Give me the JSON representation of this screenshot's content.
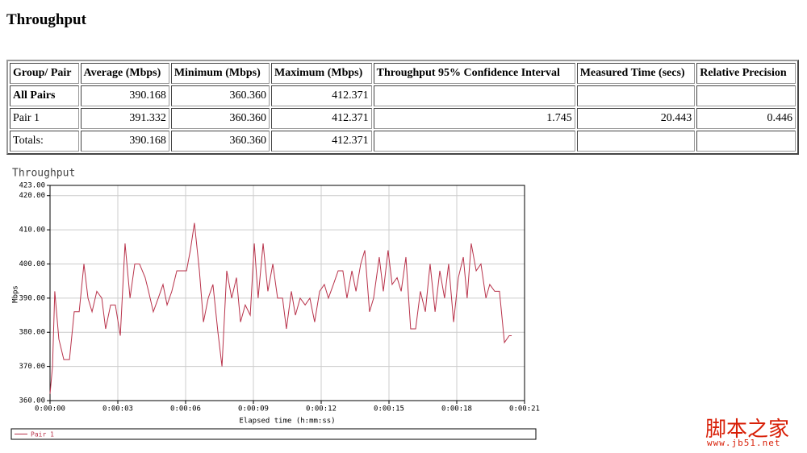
{
  "header": {
    "title": "Throughput"
  },
  "table": {
    "headers": [
      "Group/ Pair",
      "Average (Mbps)",
      "Minimum (Mbps)",
      "Maximum (Mbps)",
      "Throughput 95% Confidence Interval",
      "Measured Time (secs)",
      "Relative Precision"
    ],
    "rows": [
      {
        "group": "All Pairs",
        "average": "390.168",
        "minimum": "360.360",
        "maximum": "412.371"
      },
      {
        "group": "Pair 1",
        "average": "391.332",
        "minimum": "360.360",
        "maximum": "412.371",
        "ci": "1.745",
        "time": "20.443",
        "precision": "0.446"
      },
      {
        "group": "Totals:",
        "average": "390.168",
        "minimum": "360.360",
        "maximum": "412.371"
      }
    ]
  },
  "chart_data": {
    "type": "line",
    "title": "Throughput",
    "x_label": "Elapsed time (h:mm:ss)",
    "y_label": "Mbps",
    "x": [
      0,
      0.11,
      0.21,
      0.39,
      0.61,
      0.86,
      1.07,
      1.29,
      1.5,
      1.68,
      1.86,
      2.07,
      2.29,
      2.46,
      2.68,
      2.89,
      3.11,
      3.32,
      3.54,
      3.75,
      3.96,
      4.21,
      4.36,
      4.57,
      4.79,
      5,
      5.18,
      5.39,
      5.61,
      5.82,
      6.04,
      6.21,
      6.39,
      6.61,
      6.79,
      7,
      7.21,
      7.43,
      7.61,
      7.82,
      8.04,
      8.25,
      8.43,
      8.64,
      8.86,
      9.04,
      9.21,
      9.43,
      9.64,
      9.86,
      10.07,
      10.29,
      10.46,
      10.68,
      10.86,
      11.07,
      11.29,
      11.5,
      11.71,
      11.93,
      12.14,
      12.32,
      12.54,
      12.75,
      12.96,
      13.14,
      13.36,
      13.54,
      13.75,
      13.93,
      14.14,
      14.32,
      14.57,
      14.75,
      14.96,
      15.14,
      15.36,
      15.54,
      15.75,
      15.96,
      16.18,
      16.39,
      16.61,
      16.82,
      17.04,
      17.25,
      17.46,
      17.64,
      17.86,
      18.07,
      18.29,
      18.46,
      18.64,
      18.86,
      19.07,
      19.29,
      19.46,
      19.68,
      19.89,
      20.11,
      20.32,
      20.43
    ],
    "series": [
      {
        "name": "Pair 1",
        "color": "#b8324a",
        "values": [
          362,
          370,
          392,
          378,
          372,
          372,
          386,
          386,
          400,
          390,
          386,
          392,
          390,
          381,
          388,
          388,
          379,
          406,
          390,
          400,
          400,
          396,
          392,
          386,
          390,
          394,
          388,
          392,
          398,
          398,
          398,
          404,
          412,
          398,
          383,
          390,
          394,
          380,
          370,
          398,
          390,
          396,
          383,
          388,
          385,
          406,
          390,
          406,
          392,
          400,
          390,
          390,
          381,
          392,
          385,
          390,
          388,
          390,
          383,
          392,
          394,
          390,
          394,
          398,
          398,
          390,
          398,
          392,
          400,
          404,
          386,
          390,
          402,
          392,
          404,
          394,
          396,
          392,
          402,
          381,
          381,
          392,
          386,
          400,
          386,
          398,
          390,
          400,
          383,
          396,
          402,
          390,
          406,
          398,
          400,
          390,
          394,
          392,
          392,
          377,
          379,
          379
        ]
      }
    ],
    "xlim": [
      0,
      21
    ],
    "ylim": [
      360,
      423
    ],
    "xticks": [
      {
        "value": 0,
        "label": "0:00:00"
      },
      {
        "value": 3,
        "label": "0:00:03"
      },
      {
        "value": 6,
        "label": "0:00:06"
      },
      {
        "value": 9,
        "label": "0:00:09"
      },
      {
        "value": 12,
        "label": "0:00:12"
      },
      {
        "value": 15,
        "label": "0:00:15"
      },
      {
        "value": 18,
        "label": "0:00:18"
      },
      {
        "value": 21,
        "label": "0:00:21"
      }
    ],
    "yticks": [
      {
        "value": 360,
        "label": "360.00"
      },
      {
        "value": 370,
        "label": "370.00"
      },
      {
        "value": 380,
        "label": "380.00"
      },
      {
        "value": 390,
        "label": "390.00"
      },
      {
        "value": 400,
        "label": "400.00"
      },
      {
        "value": 410,
        "label": "410.00"
      },
      {
        "value": 420,
        "label": "420.00"
      },
      {
        "value": 423,
        "label": "423.00"
      }
    ],
    "grid": true
  },
  "watermark": {
    "brand": "脚本之家",
    "url": "www.jb51.net"
  }
}
